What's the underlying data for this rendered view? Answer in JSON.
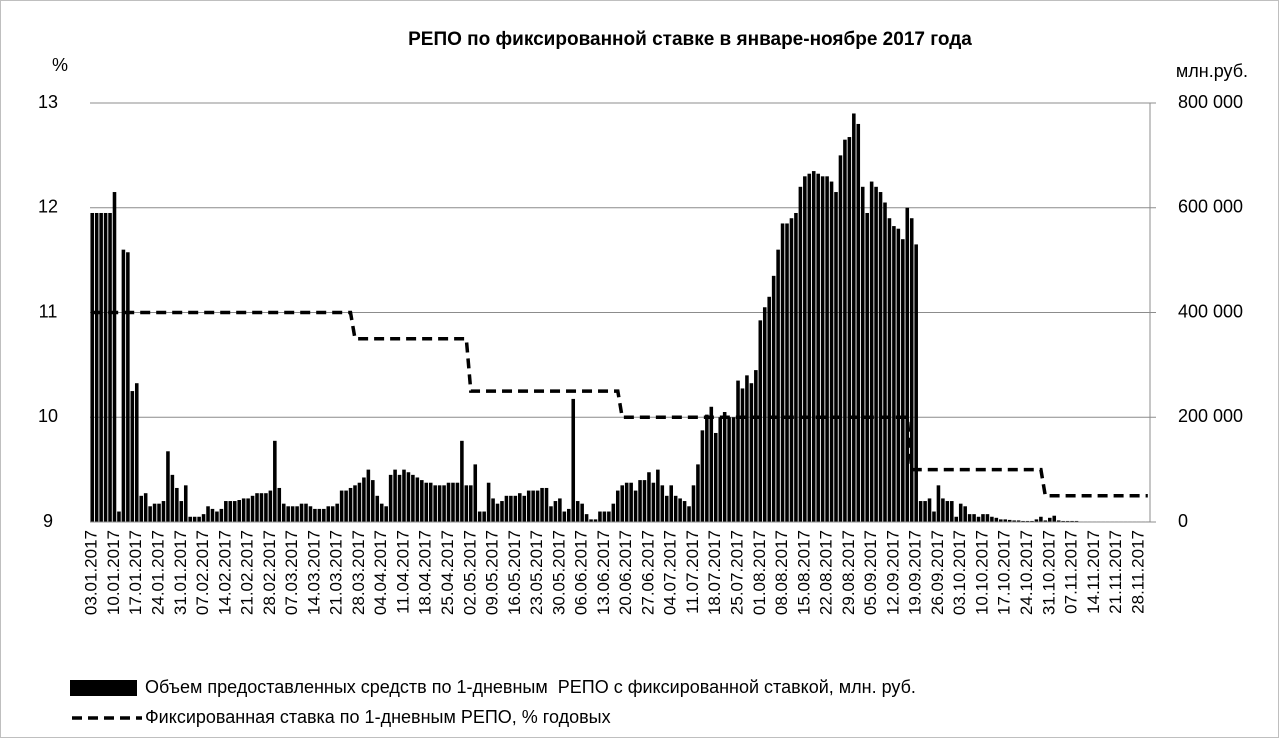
{
  "chart_data": {
    "type": "bar-line",
    "title": "РЕПО по фиксированной ставке в январе-ноябре 2017 года",
    "y_label": "%",
    "y2_label": "млн.руб.",
    "categories": [
      "03.01.2017",
      null,
      null,
      null,
      null,
      "10.01.2017",
      null,
      null,
      null,
      null,
      "17.01.2017",
      null,
      null,
      null,
      null,
      "24.01.2017",
      null,
      null,
      null,
      null,
      "31.01.2017",
      null,
      null,
      null,
      null,
      "07.02.2017",
      null,
      null,
      null,
      null,
      "14.02.2017",
      null,
      null,
      null,
      null,
      "21.02.2017",
      null,
      null,
      null,
      null,
      "28.02.2017",
      null,
      null,
      null,
      null,
      "07.03.2017",
      null,
      null,
      null,
      null,
      "14.03.2017",
      null,
      null,
      null,
      null,
      "21.03.2017",
      null,
      null,
      null,
      null,
      "28.03.2017",
      null,
      null,
      null,
      null,
      "04.04.2017",
      null,
      null,
      null,
      null,
      "11.04.2017",
      null,
      null,
      null,
      null,
      "18.04.2017",
      null,
      null,
      null,
      null,
      "25.04.2017",
      null,
      null,
      null,
      null,
      "02.05.2017",
      null,
      null,
      null,
      null,
      "09.05.2017",
      null,
      null,
      null,
      null,
      "16.05.2017",
      null,
      null,
      null,
      null,
      "23.05.2017",
      null,
      null,
      null,
      null,
      "30.05.2017",
      null,
      null,
      null,
      null,
      "06.06.2017",
      null,
      null,
      null,
      null,
      "13.06.2017",
      null,
      null,
      null,
      null,
      "20.06.2017",
      null,
      null,
      null,
      null,
      "27.06.2017",
      null,
      null,
      null,
      null,
      "04.07.2017",
      null,
      null,
      null,
      null,
      "11.07.2017",
      null,
      null,
      null,
      null,
      "18.07.2017",
      null,
      null,
      null,
      null,
      "25.07.2017",
      null,
      null,
      null,
      null,
      "01.08.2017",
      null,
      null,
      null,
      null,
      "08.08.2017",
      null,
      null,
      null,
      null,
      "15.08.2017",
      null,
      null,
      null,
      null,
      "22.08.2017",
      null,
      null,
      null,
      null,
      "29.08.2017",
      null,
      null,
      null,
      null,
      "05.09.2017",
      null,
      null,
      null,
      null,
      "12.09.2017",
      null,
      null,
      null,
      null,
      "19.09.2017",
      null,
      null,
      null,
      null,
      "26.09.2017",
      null,
      null,
      null,
      null,
      "03.10.2017",
      null,
      null,
      null,
      null,
      "10.10.2017",
      null,
      null,
      null,
      null,
      "17.10.2017",
      null,
      null,
      null,
      null,
      "24.10.2017",
      null,
      null,
      null,
      null,
      "31.10.2017",
      null,
      null,
      null,
      null,
      "07.11.2017",
      null,
      null,
      null,
      null,
      "14.11.2017",
      null,
      null,
      null,
      null,
      "21.11.2017",
      null,
      null,
      null,
      null,
      "28.11.2017",
      null,
      null
    ],
    "series": [
      {
        "name": "Объем предоставленных средств по 1-дневным  РЕПО с фиксированной ставкой, млн. руб.",
        "kind": "bar",
        "axis": "y2",
        "color": "#000000",
        "values": [
          590000,
          590000,
          590000,
          590000,
          590000,
          630000,
          20000,
          520000,
          515000,
          250000,
          265000,
          50000,
          55000,
          30000,
          35000,
          35000,
          40000,
          135000,
          90000,
          65000,
          40000,
          70000,
          10000,
          10000,
          10000,
          15000,
          30000,
          25000,
          20000,
          25000,
          40000,
          40000,
          40000,
          42000,
          45000,
          45000,
          50000,
          55000,
          55000,
          55000,
          60000,
          155000,
          65000,
          35000,
          30000,
          30000,
          30000,
          35000,
          35000,
          30000,
          25000,
          25000,
          25000,
          30000,
          30000,
          35000,
          60000,
          60000,
          65000,
          70000,
          75000,
          85000,
          100000,
          80000,
          50000,
          35000,
          30000,
          90000,
          100000,
          90000,
          100000,
          95000,
          90000,
          85000,
          80000,
          75000,
          75000,
          70000,
          70000,
          70000,
          75000,
          75000,
          75000,
          155000,
          70000,
          70000,
          110000,
          20000,
          20000,
          75000,
          45000,
          35000,
          40000,
          50000,
          50000,
          50000,
          55000,
          50000,
          60000,
          60000,
          60000,
          65000,
          65000,
          30000,
          40000,
          45000,
          20000,
          25000,
          235000,
          40000,
          35000,
          15000,
          5000,
          5000,
          20000,
          20000,
          20000,
          35000,
          60000,
          70000,
          75000,
          75000,
          60000,
          80000,
          80000,
          95000,
          75000,
          100000,
          70000,
          50000,
          70000,
          50000,
          45000,
          40000,
          30000,
          70000,
          110000,
          175000,
          205000,
          220000,
          170000,
          200000,
          210000,
          200000,
          200000,
          270000,
          255000,
          280000,
          265000,
          290000,
          385000,
          410000,
          430000,
          470000,
          520000,
          570000,
          570000,
          580000,
          590000,
          640000,
          660000,
          665000,
          670000,
          665000,
          660000,
          660000,
          650000,
          630000,
          700000,
          730000,
          735000,
          780000,
          760000,
          640000,
          590000,
          650000,
          640000,
          630000,
          610000,
          580000,
          565000,
          560000,
          540000,
          600000,
          580000,
          530000,
          40000,
          40000,
          45000,
          20000,
          70000,
          45000,
          40000,
          40000,
          10000,
          35000,
          30000,
          15000,
          15000,
          10000,
          15000,
          15000,
          10000,
          8000,
          5000,
          5000,
          4000,
          3000,
          3000,
          2000,
          2000,
          2000,
          5000,
          10000,
          3000,
          8000,
          12000,
          3000,
          2000,
          2000,
          2000,
          2000,
          1000,
          1000,
          1000,
          1000,
          1000,
          1000,
          1000,
          1000,
          1000,
          1000,
          1000,
          1000,
          1000,
          1000,
          1000,
          1000
        ]
      },
      {
        "name": "Фиксированная ставка по 1-дневным РЕПО, % годовых",
        "kind": "line",
        "axis": "y",
        "color": "#000000",
        "dashed": true,
        "values": [
          11,
          11,
          11,
          11,
          11,
          11,
          11,
          11,
          11,
          11,
          11,
          11,
          11,
          11,
          11,
          11,
          11,
          11,
          11,
          11,
          11,
          11,
          11,
          11,
          11,
          11,
          11,
          11,
          11,
          11,
          11,
          11,
          11,
          11,
          11,
          11,
          11,
          11,
          11,
          11,
          11,
          11,
          11,
          11,
          11,
          11,
          11,
          11,
          11,
          11,
          11,
          11,
          11,
          11,
          11,
          11,
          11,
          11,
          11,
          10.75,
          10.75,
          10.75,
          10.75,
          10.75,
          10.75,
          10.75,
          10.75,
          10.75,
          10.75,
          10.75,
          10.75,
          10.75,
          10.75,
          10.75,
          10.75,
          10.75,
          10.75,
          10.75,
          10.75,
          10.75,
          10.75,
          10.75,
          10.75,
          10.75,
          10.75,
          10.25,
          10.25,
          10.25,
          10.25,
          10.25,
          10.25,
          10.25,
          10.25,
          10.25,
          10.25,
          10.25,
          10.25,
          10.25,
          10.25,
          10.25,
          10.25,
          10.25,
          10.25,
          10.25,
          10.25,
          10.25,
          10.25,
          10.25,
          10.25,
          10.25,
          10.25,
          10.25,
          10.25,
          10.25,
          10.25,
          10.25,
          10.25,
          10.25,
          10.25,
          10,
          10,
          10,
          10,
          10,
          10,
          10,
          10,
          10,
          10,
          10,
          10,
          10,
          10,
          10,
          10,
          10,
          10,
          10,
          10,
          10,
          10,
          10,
          10,
          10,
          10,
          10,
          10,
          10,
          10,
          10,
          10,
          10,
          10,
          10,
          10,
          10,
          10,
          10,
          10,
          10,
          10,
          10,
          10,
          10,
          10,
          10,
          10,
          10,
          10,
          10,
          10,
          10,
          10,
          10,
          10,
          10,
          10,
          10,
          10,
          10,
          10,
          10,
          10,
          10,
          9.5,
          9.5,
          9.5,
          9.5,
          9.5,
          9.5,
          9.5,
          9.5,
          9.5,
          9.5,
          9.5,
          9.5,
          9.5,
          9.5,
          9.5,
          9.5,
          9.5,
          9.5,
          9.5,
          9.5,
          9.5,
          9.5,
          9.5,
          9.5,
          9.5,
          9.5,
          9.5,
          9.5,
          9.5,
          9.5,
          9.25,
          9.25,
          9.25,
          9.25,
          9.25,
          9.25,
          9.25,
          9.25,
          9.25,
          9.25,
          9.25,
          9.25,
          9.25,
          9.25,
          9.25,
          9.25,
          9.25,
          9.25,
          9.25,
          9.25,
          9.25,
          9.25,
          9.25,
          9.25
        ]
      }
    ],
    "ylim": [
      9,
      13
    ],
    "yticks": [
      9,
      10,
      11,
      12,
      13
    ],
    "y2lim": [
      0,
      800000
    ],
    "y2ticks": [
      0,
      {
        "value": 200000,
        "label": "200 000"
      },
      {
        "value": 400000,
        "label": "400 000"
      },
      {
        "value": 600000,
        "label": "600 000"
      },
      {
        "value": 800000,
        "label": "800 000"
      }
    ],
    "grid": true,
    "legend": "bottom"
  }
}
